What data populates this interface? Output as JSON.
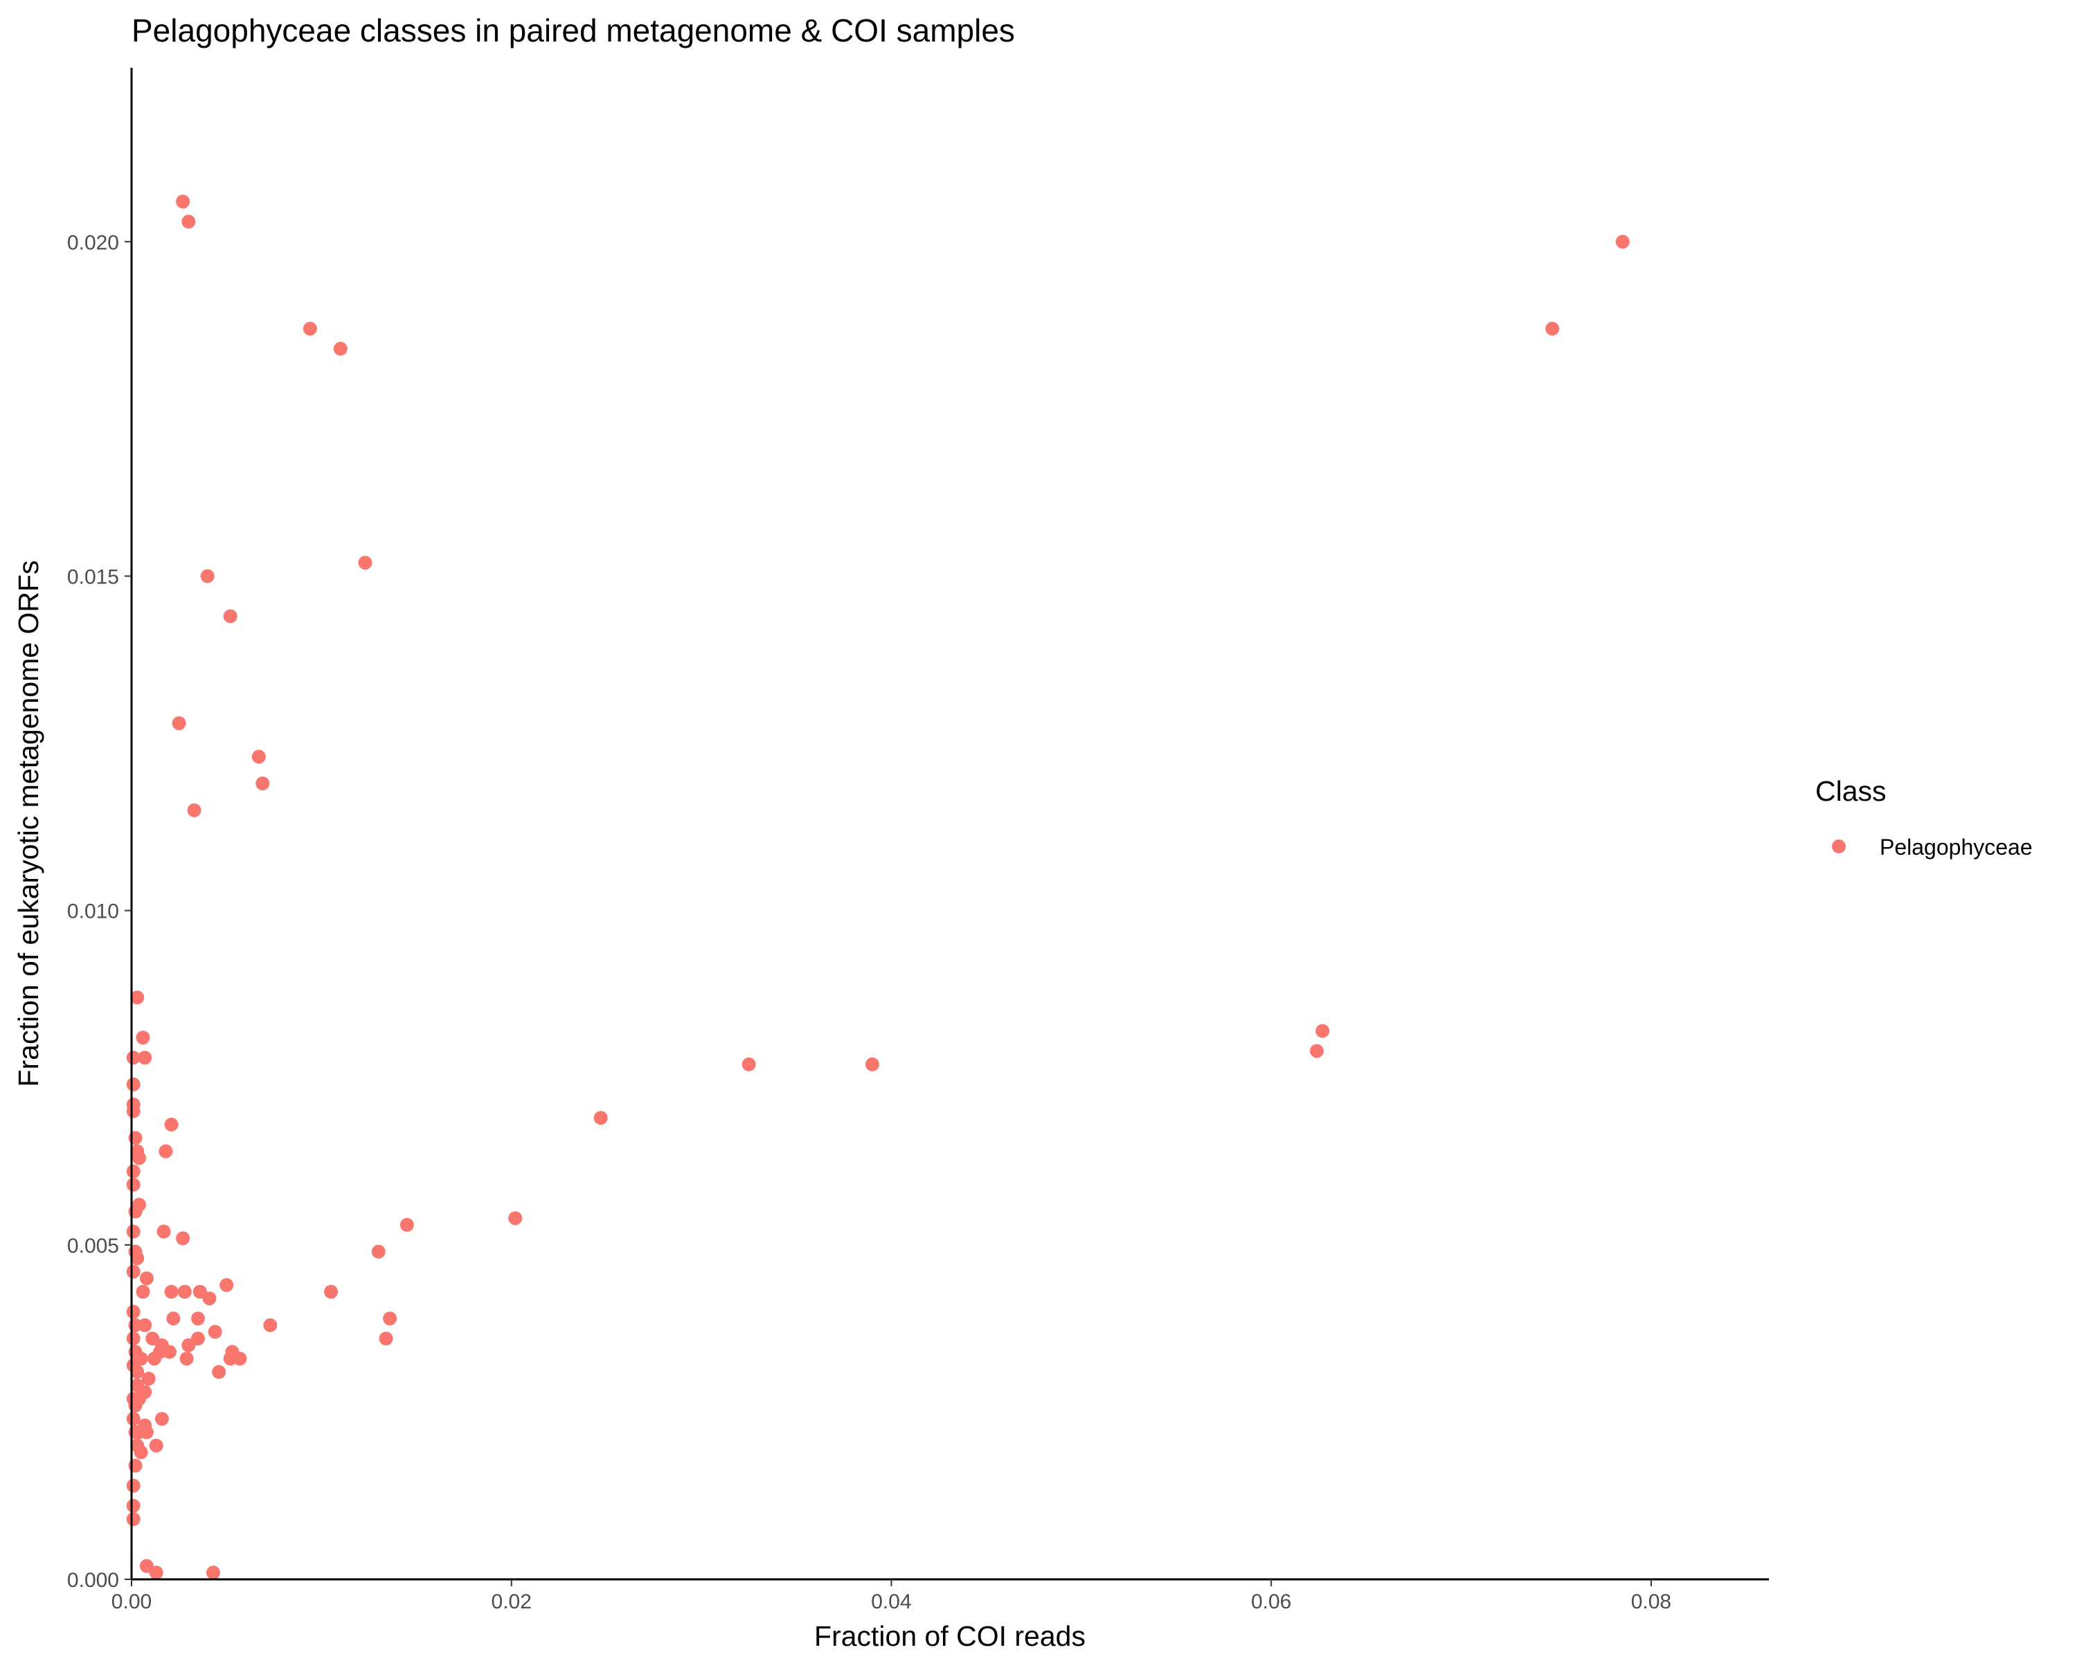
{
  "chart_data": {
    "type": "scatter",
    "title": "Pelagophyceae classes in paired metagenome & COI samples",
    "xlabel": "Fraction of COI reads",
    "ylabel": "Fraction of eukaryotic metagenome ORFs",
    "xlim": [
      0,
      0.0862
    ],
    "ylim": [
      0,
      0.0226
    ],
    "x_ticks": [
      "0.00",
      "0.02",
      "0.04",
      "0.06",
      "0.08"
    ],
    "y_ticks": [
      "0.000",
      "0.005",
      "0.010",
      "0.015",
      "0.020"
    ],
    "grid": false,
    "legend": {
      "title": "Class",
      "position": "right",
      "entries": [
        "Pelagophyceae"
      ]
    },
    "series": [
      {
        "name": "Pelagophyceae",
        "color": "#F8766D",
        "points": [
          [
            0.0027,
            0.0206
          ],
          [
            0.003,
            0.0203
          ],
          [
            0.0094,
            0.0187
          ],
          [
            0.011,
            0.0184
          ],
          [
            0.0785,
            0.02
          ],
          [
            0.0748,
            0.0187
          ],
          [
            0.004,
            0.015
          ],
          [
            0.0052,
            0.0144
          ],
          [
            0.0123,
            0.0152
          ],
          [
            0.0025,
            0.0128
          ],
          [
            0.0067,
            0.0123
          ],
          [
            0.0069,
            0.0119
          ],
          [
            0.0033,
            0.0115
          ],
          [
            0.0627,
            0.0082
          ],
          [
            0.0624,
            0.0079
          ],
          [
            0.0325,
            0.0077
          ],
          [
            0.039,
            0.0077
          ],
          [
            0.0247,
            0.0069
          ],
          [
            0.0202,
            0.0054
          ],
          [
            0.0145,
            0.0053
          ],
          [
            0.013,
            0.0049
          ],
          [
            0.0105,
            0.0043
          ],
          [
            0.0136,
            0.0039
          ],
          [
            0.0134,
            0.0036
          ],
          [
            0.0073,
            0.0038
          ],
          [
            0.0003,
            0.0087
          ],
          [
            0.0006,
            0.0081
          ],
          [
            0.0007,
            0.0078
          ],
          [
            0.0001,
            0.0078
          ],
          [
            0.0001,
            0.0074
          ],
          [
            0.0001,
            0.0071
          ],
          [
            0.0001,
            0.007
          ],
          [
            0.0021,
            0.0068
          ],
          [
            0.0018,
            0.0064
          ],
          [
            0.0002,
            0.0066
          ],
          [
            0.0003,
            0.0064
          ],
          [
            0.0004,
            0.0063
          ],
          [
            0.0001,
            0.0061
          ],
          [
            0.0001,
            0.0059
          ],
          [
            0.0004,
            0.0056
          ],
          [
            0.0002,
            0.0055
          ],
          [
            0.0017,
            0.0052
          ],
          [
            0.0027,
            0.0051
          ],
          [
            0.0001,
            0.0052
          ],
          [
            0.0002,
            0.0049
          ],
          [
            0.0003,
            0.0048
          ],
          [
            0.0001,
            0.0046
          ],
          [
            0.005,
            0.0044
          ],
          [
            0.0028,
            0.0043
          ],
          [
            0.0036,
            0.0043
          ],
          [
            0.0041,
            0.0042
          ],
          [
            0.0021,
            0.0043
          ],
          [
            0.0008,
            0.0045
          ],
          [
            0.0006,
            0.0043
          ],
          [
            0.0035,
            0.0039
          ],
          [
            0.0022,
            0.0039
          ],
          [
            0.0007,
            0.0038
          ],
          [
            0.0044,
            0.0037
          ],
          [
            0.0035,
            0.0036
          ],
          [
            0.003,
            0.0035
          ],
          [
            0.0011,
            0.0036
          ],
          [
            0.0016,
            0.0035
          ],
          [
            0.0053,
            0.0034
          ],
          [
            0.0057,
            0.0033
          ],
          [
            0.0052,
            0.0033
          ],
          [
            0.0029,
            0.0033
          ],
          [
            0.0015,
            0.0034
          ],
          [
            0.002,
            0.0034
          ],
          [
            0.0012,
            0.0033
          ],
          [
            0.0046,
            0.0031
          ],
          [
            0.0009,
            0.003
          ],
          [
            0.0005,
            0.0033
          ],
          [
            0.0003,
            0.0031
          ],
          [
            0.0007,
            0.0028
          ],
          [
            0.0004,
            0.0027
          ],
          [
            0.0002,
            0.0026
          ],
          [
            0.0016,
            0.0024
          ],
          [
            0.0007,
            0.0023
          ],
          [
            0.0004,
            0.0022
          ],
          [
            0.0008,
            0.0022
          ],
          [
            0.0013,
            0.002
          ],
          [
            0.0003,
            0.002
          ],
          [
            0.0005,
            0.0019
          ],
          [
            0.0002,
            0.0017
          ],
          [
            0.0001,
            0.0014
          ],
          [
            0.0001,
            0.0011
          ],
          [
            0.0001,
            0.0009
          ],
          [
            0.0001,
            0.004
          ],
          [
            0.0002,
            0.0038
          ],
          [
            0.0001,
            0.0036
          ],
          [
            0.0002,
            0.0034
          ],
          [
            0.0001,
            0.0032
          ],
          [
            0.0003,
            0.0029
          ],
          [
            0.0001,
            0.0027
          ],
          [
            0.0001,
            0.0024
          ],
          [
            0.0002,
            0.0022
          ],
          [
            0.0008,
            0.0002
          ],
          [
            0.0013,
            0.0001
          ],
          [
            0.0043,
            0.0001
          ]
        ]
      }
    ]
  }
}
